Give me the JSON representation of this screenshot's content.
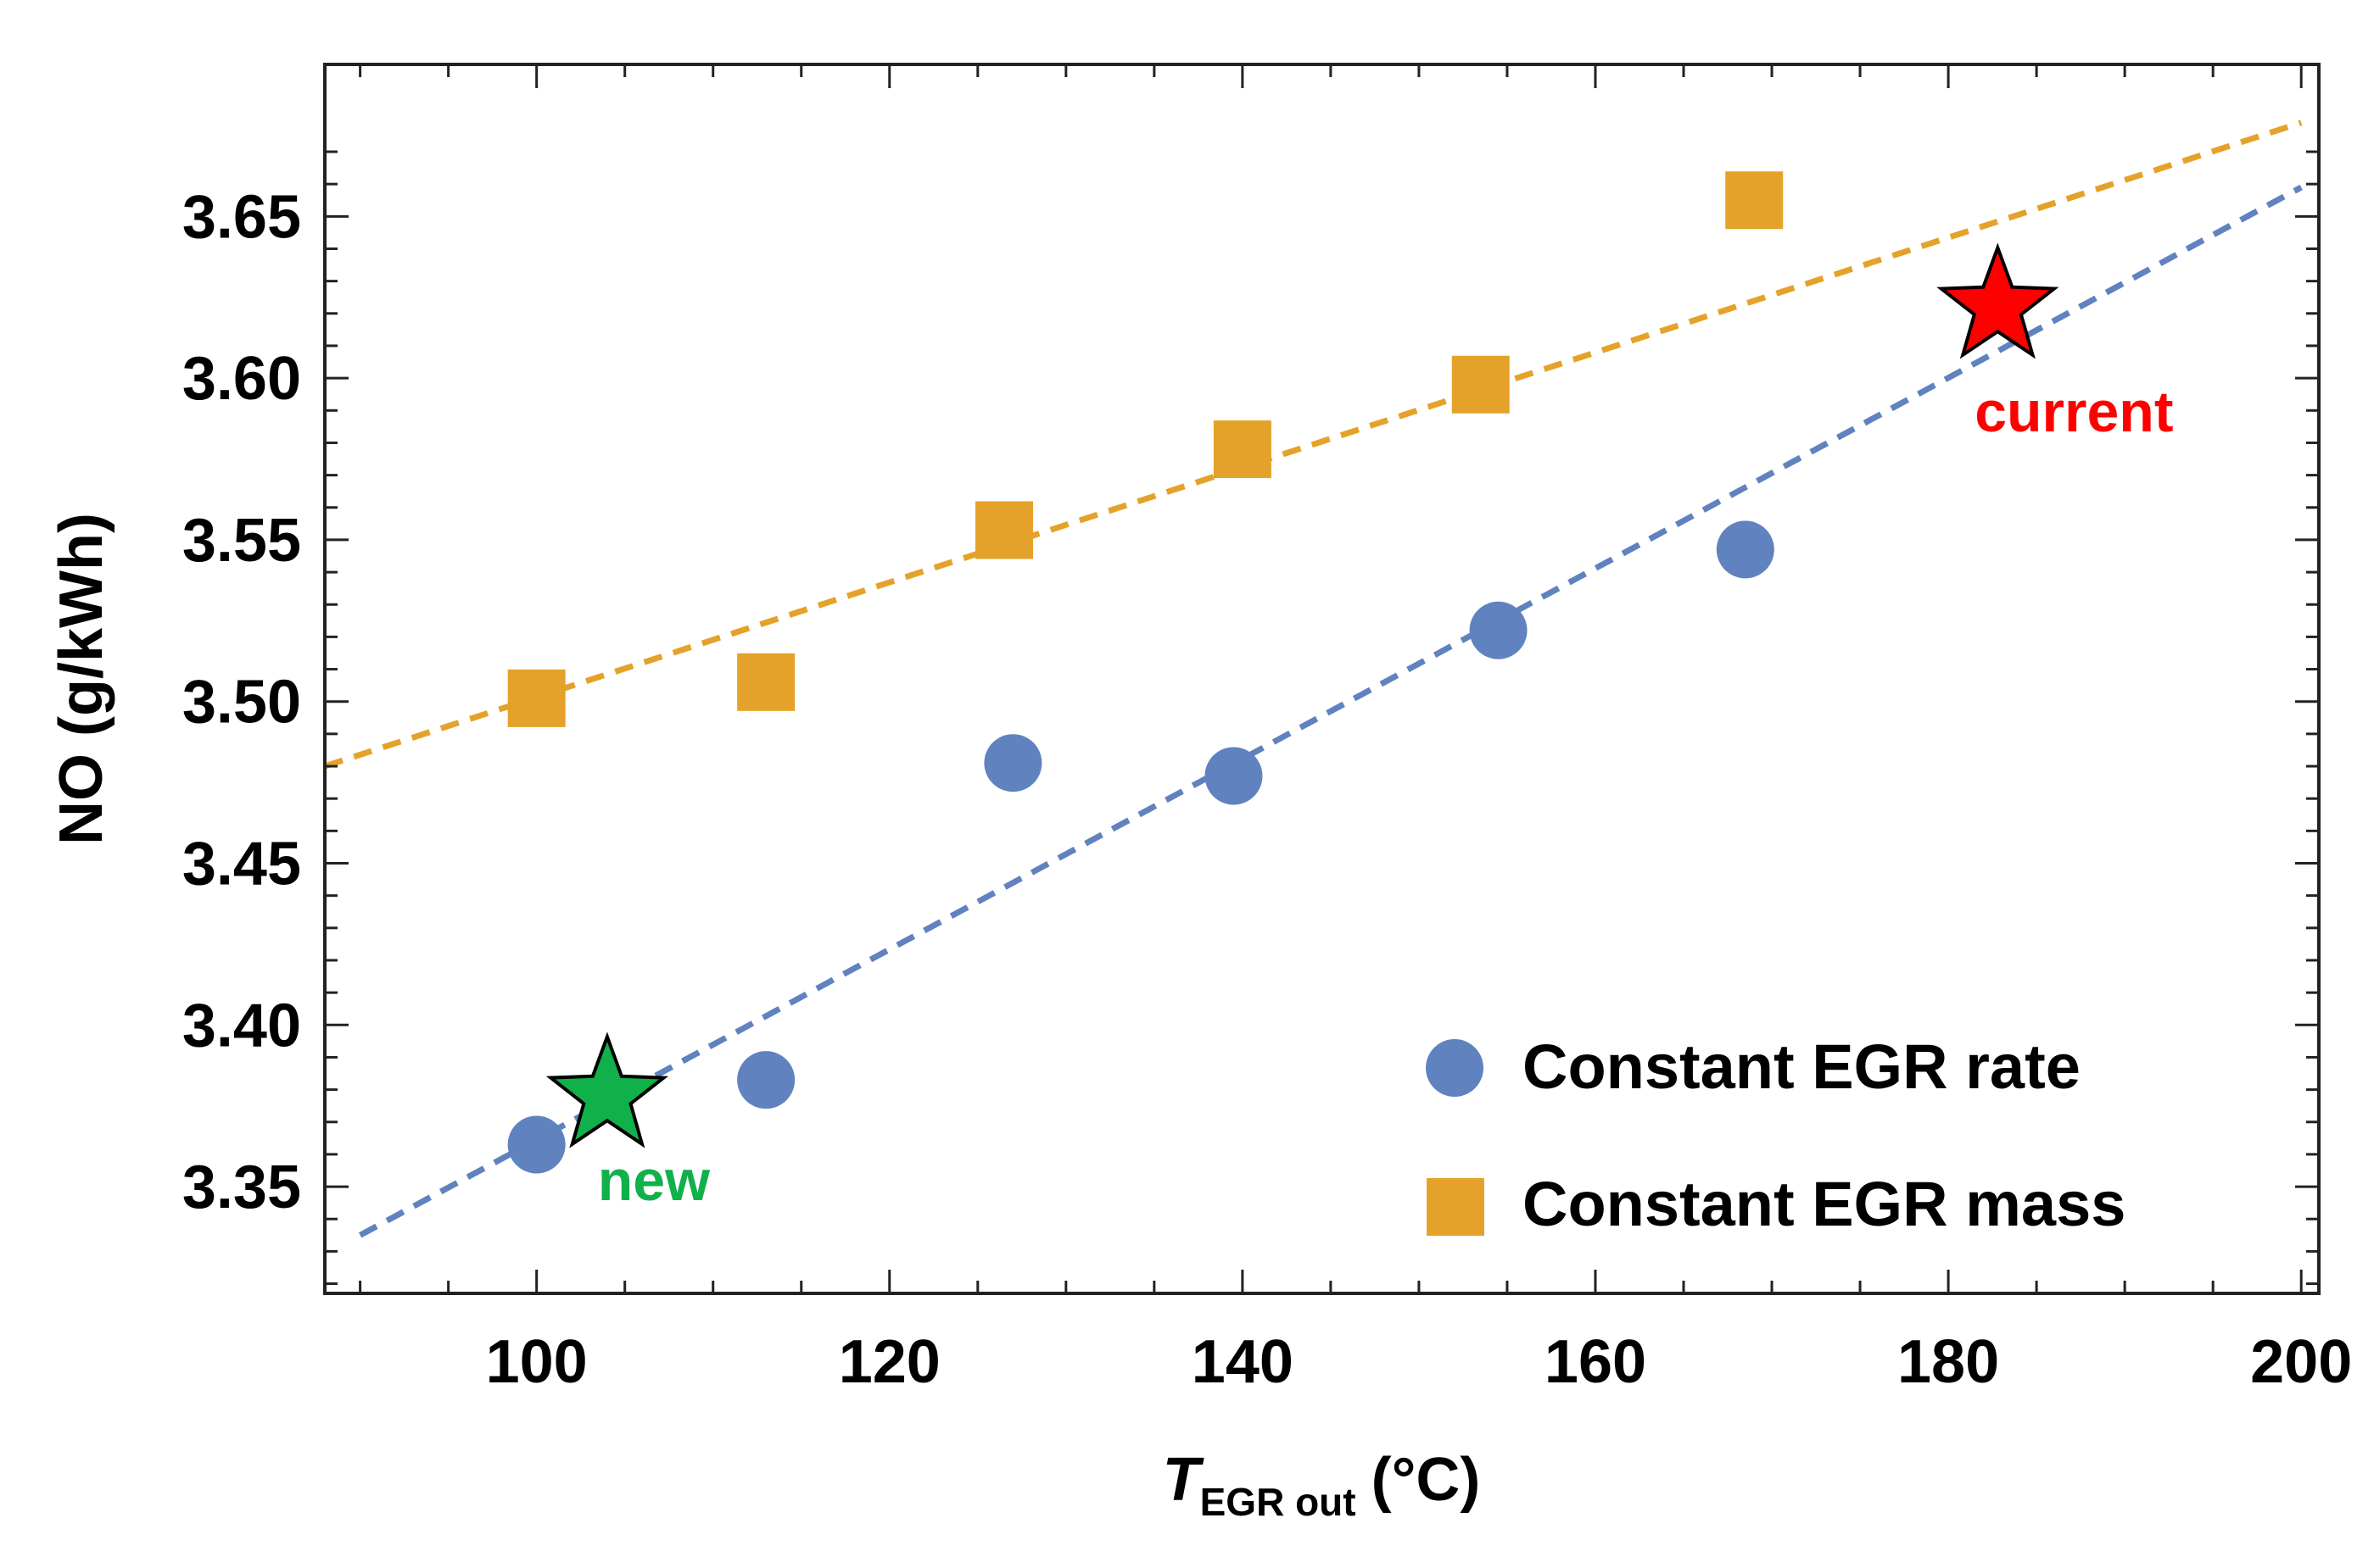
{
  "chart_data": {
    "type": "scatter",
    "title": "",
    "xlabel": {
      "main": "T",
      "sub": "EGR out",
      "unit": "(°C)"
    },
    "ylabel": "NO (g/kWh)",
    "xlim": [
      88,
      201
    ],
    "ylim": [
      3.317,
      3.697
    ],
    "x_ticks": [
      100,
      120,
      140,
      160,
      180,
      200
    ],
    "x_tick_labels": [
      "100",
      "120",
      "140",
      "160",
      "180",
      "200"
    ],
    "y_ticks": [
      3.35,
      3.4,
      3.45,
      3.5,
      3.55,
      3.6,
      3.65
    ],
    "y_tick_labels": [
      "3.35",
      "3.40",
      "3.45",
      "3.50",
      "3.55",
      "3.60",
      "3.65"
    ],
    "grid": false,
    "legend_position": "bottom-right",
    "series": [
      {
        "name": "Constant EGR rate",
        "marker": "circle",
        "color": "#6082bf",
        "points": [
          {
            "x": 100.0,
            "y": 3.363
          },
          {
            "x": 113.0,
            "y": 3.383
          },
          {
            "x": 127.0,
            "y": 3.481
          },
          {
            "x": 139.5,
            "y": 3.477
          },
          {
            "x": 154.5,
            "y": 3.522
          },
          {
            "x": 168.5,
            "y": 3.547
          }
        ],
        "fit_line": {
          "x": [
            90,
            200
          ],
          "y": [
            3.335,
            3.659
          ]
        }
      },
      {
        "name": "Constant EGR mass",
        "marker": "square",
        "color": "#e5a22a",
        "points": [
          {
            "x": 100.0,
            "y": 3.501
          },
          {
            "x": 113.0,
            "y": 3.506
          },
          {
            "x": 126.5,
            "y": 3.553
          },
          {
            "x": 140.0,
            "y": 3.578
          },
          {
            "x": 153.5,
            "y": 3.598
          },
          {
            "x": 169.0,
            "y": 3.655
          }
        ],
        "fit_line": {
          "x": [
            88,
            200
          ],
          "y": [
            3.48,
            3.679
          ]
        }
      }
    ],
    "annotations": [
      {
        "label": "current",
        "marker": "star",
        "color": "#ff0000",
        "x": 182.8,
        "y": 3.622
      },
      {
        "label": "new",
        "marker": "star",
        "color": "#10b04b",
        "x": 104.0,
        "y": 3.378
      }
    ]
  }
}
